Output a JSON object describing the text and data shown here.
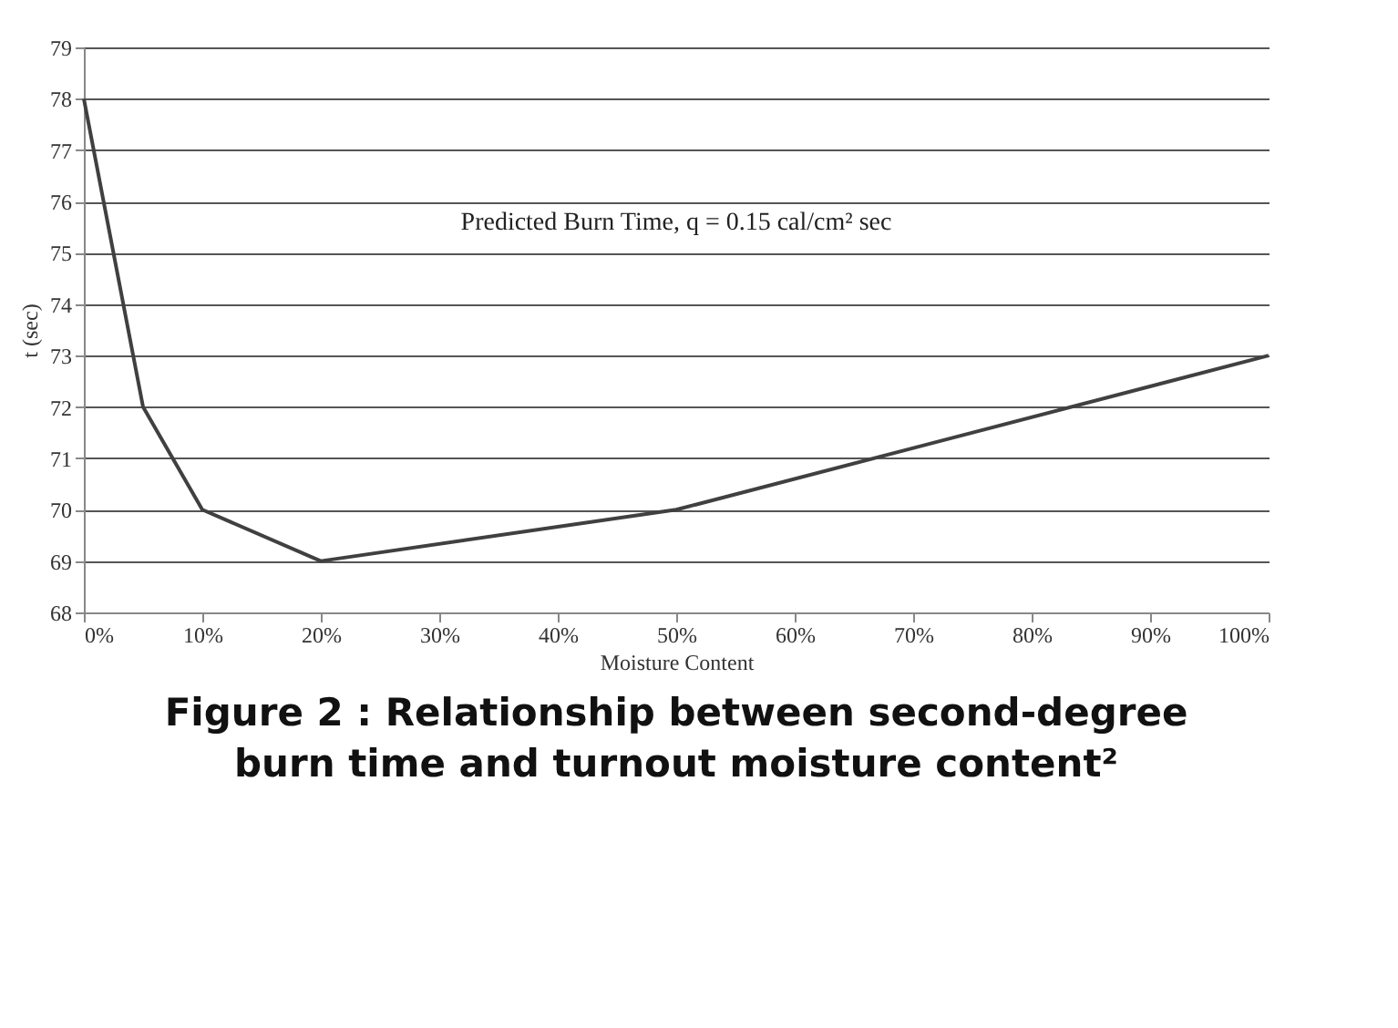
{
  "chart_data": {
    "type": "line",
    "title": "Figure 2 : Relationship between second-degree burn time and turnout moisture content²",
    "xlabel": "Moisture Content",
    "ylabel": "t (sec)",
    "annotations": [
      "Predicted Burn Time, q = 0.15 cal/cm² sec"
    ],
    "x": [
      0,
      5,
      10,
      20,
      50,
      100
    ],
    "series": [
      {
        "color": "#404040",
        "values": [
          78,
          72,
          70,
          69,
          70,
          73
        ]
      }
    ],
    "xlim": [
      0,
      100
    ],
    "xticks": [
      {
        "value": 0,
        "label": "0%"
      },
      {
        "value": 10,
        "label": "10%"
      },
      {
        "value": 20,
        "label": "20%"
      },
      {
        "value": 30,
        "label": "30%"
      },
      {
        "value": 40,
        "label": "40%"
      },
      {
        "value": 50,
        "label": "50%"
      },
      {
        "value": 60,
        "label": "60%"
      },
      {
        "value": 70,
        "label": "70%"
      },
      {
        "value": 80,
        "label": "80%"
      },
      {
        "value": 90,
        "label": "90%"
      },
      {
        "value": 100,
        "label": "100%"
      }
    ],
    "ylim": [
      68,
      79
    ],
    "yticks": [
      68,
      69,
      70,
      71,
      72,
      73,
      74,
      75,
      76,
      77,
      78,
      79
    ],
    "grid": "y",
    "marker": "none",
    "line_style": "solid"
  }
}
